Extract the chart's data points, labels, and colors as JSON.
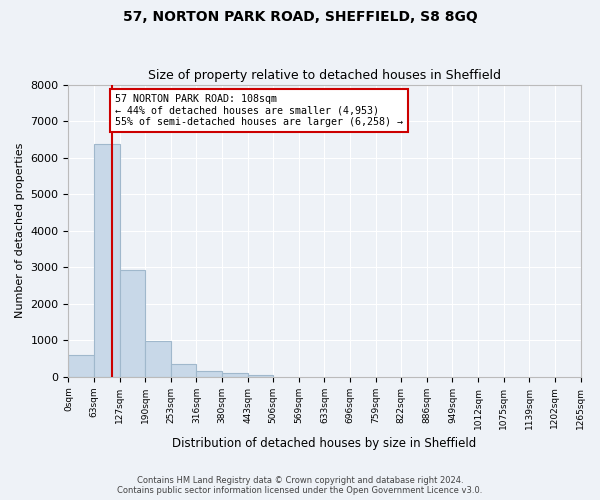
{
  "title": "57, NORTON PARK ROAD, SHEFFIELD, S8 8GQ",
  "subtitle": "Size of property relative to detached houses in Sheffield",
  "xlabel": "Distribution of detached houses by size in Sheffield",
  "ylabel": "Number of detached properties",
  "bar_color": "#c8d8e8",
  "bar_edge_color": "#a0b8cc",
  "highlight_line_color": "#cc0000",
  "bin_labels": [
    "0sqm",
    "63sqm",
    "127sqm",
    "190sqm",
    "253sqm",
    "316sqm",
    "380sqm",
    "443sqm",
    "506sqm",
    "569sqm",
    "633sqm",
    "696sqm",
    "759sqm",
    "822sqm",
    "886sqm",
    "949sqm",
    "1012sqm",
    "1075sqm",
    "1139sqm",
    "1202sqm",
    "1265sqm"
  ],
  "values": [
    590,
    6370,
    2920,
    970,
    360,
    155,
    105,
    60,
    0,
    0,
    0,
    0,
    0,
    0,
    0,
    0,
    0,
    0,
    0,
    0
  ],
  "ylim": [
    0,
    8000
  ],
  "yticks": [
    0,
    1000,
    2000,
    3000,
    4000,
    5000,
    6000,
    7000,
    8000
  ],
  "property_size": 108,
  "bin_width": 63,
  "annotation_line1": "57 NORTON PARK ROAD: 108sqm",
  "annotation_line2": "← 44% of detached houses are smaller (4,953)",
  "annotation_line3": "55% of semi-detached houses are larger (6,258) →",
  "footnote1": "Contains HM Land Registry data © Crown copyright and database right 2024.",
  "footnote2": "Contains public sector information licensed under the Open Government Licence v3.0.",
  "background_color": "#eef2f7",
  "plot_bg_color": "#eef2f7",
  "grid_color": "#ffffff"
}
